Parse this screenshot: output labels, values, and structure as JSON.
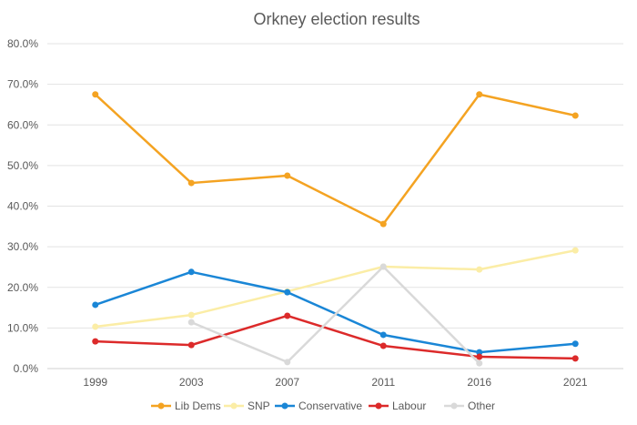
{
  "chart_data": {
    "type": "line",
    "title": "Orkney election results",
    "categories": [
      "1999",
      "2003",
      "2007",
      "2011",
      "2016",
      "2021"
    ],
    "ylim": [
      0,
      80
    ],
    "yticks": [
      "0.0%",
      "10.0%",
      "20.0%",
      "30.0%",
      "40.0%",
      "50.0%",
      "60.0%",
      "70.0%",
      "80.0%"
    ],
    "grid": true,
    "legend": "bottom",
    "series": [
      {
        "name": "Lib Dems",
        "color": "#F4A322",
        "values": [
          67.5,
          45.7,
          47.5,
          35.6,
          67.5,
          62.3
        ]
      },
      {
        "name": "SNP",
        "color": "#FBEDA6",
        "values": [
          10.3,
          13.2,
          19.0,
          25.1,
          24.4,
          29.1
        ]
      },
      {
        "name": "Conservative",
        "color": "#1A86D6",
        "values": [
          15.7,
          23.8,
          18.8,
          8.3,
          4.0,
          6.1
        ]
      },
      {
        "name": "Labour",
        "color": "#DC2A2A",
        "values": [
          6.7,
          5.8,
          13.0,
          5.6,
          2.9,
          2.5
        ]
      },
      {
        "name": "Other",
        "color": "#D9D9D9",
        "values": [
          null,
          11.4,
          1.6,
          25.1,
          1.3,
          null
        ]
      }
    ]
  }
}
